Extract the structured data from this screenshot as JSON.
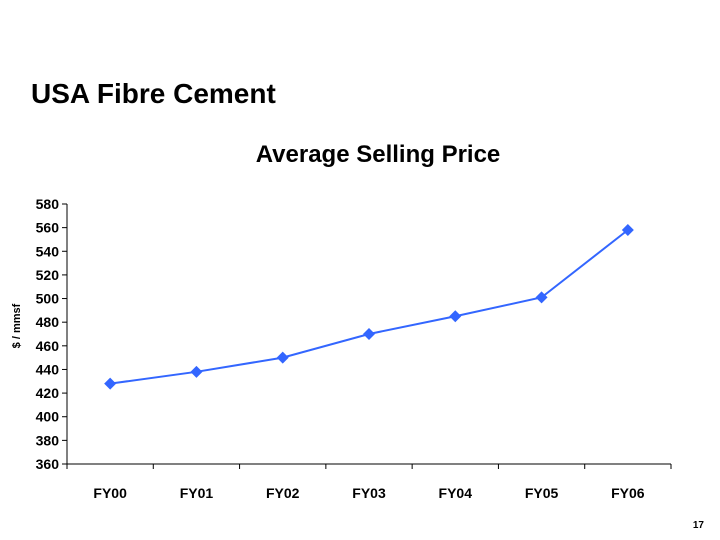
{
  "slide": {
    "title": "USA Fibre Cement",
    "page_number": "17"
  },
  "colors": {
    "series": "#3366ff",
    "axis": "#000000"
  },
  "chart_data": {
    "type": "line",
    "title": "Average Selling Price",
    "xlabel": "",
    "ylabel": "$ / mmsf",
    "categories": [
      "FY00",
      "FY01",
      "FY02",
      "FY03",
      "FY04",
      "FY05",
      "FY06"
    ],
    "series": [
      {
        "values": [
          428,
          438,
          450,
          470,
          485,
          501,
          558
        ]
      }
    ],
    "ylim": [
      360,
      580
    ],
    "yticks": [
      360,
      380,
      400,
      420,
      440,
      460,
      480,
      500,
      520,
      540,
      560,
      580
    ],
    "marker": "diamond",
    "grid": false,
    "legend": "none"
  }
}
